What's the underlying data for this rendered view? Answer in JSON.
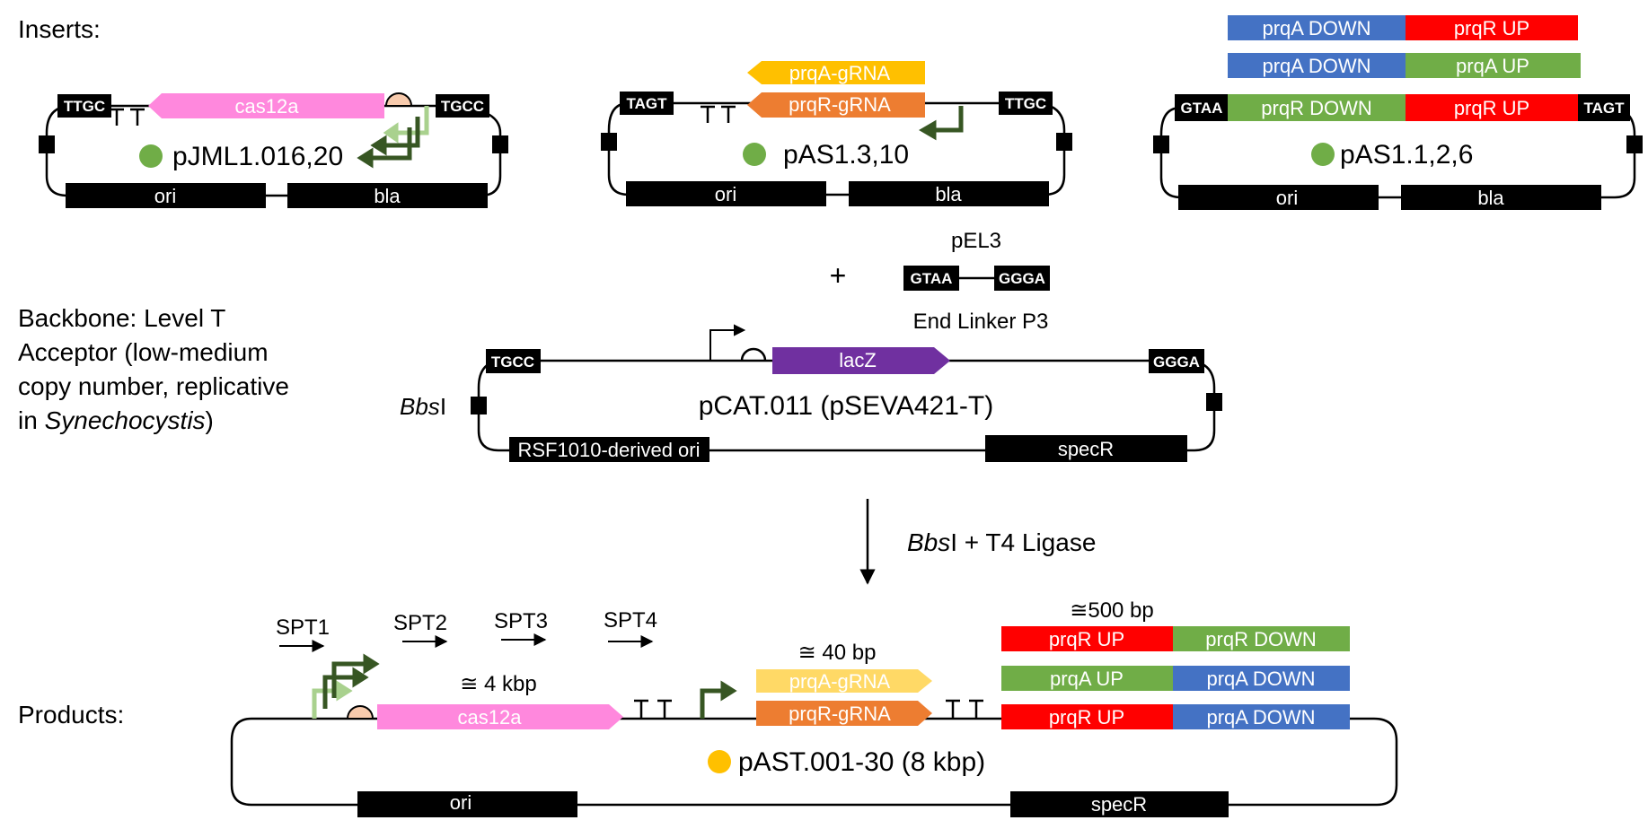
{
  "sections": {
    "inserts": "Inserts:",
    "backbone_lines": [
      "Backbone: Level T",
      "Acceptor (low-medium",
      "copy number, replicative"
    ],
    "backbone_last_prefix": "in ",
    "backbone_last_italic": "Synechocystis",
    "backbone_last_suffix": ")",
    "products": "Products:"
  },
  "plasmid1": {
    "name": "pJML1.016,20",
    "left_overhang": "TTGC",
    "right_overhang": "TGCC",
    "gene": "cas12a",
    "ori": "ori",
    "marker": "bla"
  },
  "plasmid2": {
    "name": "pAS1.3,10",
    "left_overhang": "TAGT",
    "right_overhang": "TTGC",
    "grna_a": "prqA-gRNA",
    "grna_r": "prqR-gRNA",
    "ori": "ori",
    "marker": "bla"
  },
  "plasmid3": {
    "name": "pAS1.1,2,6",
    "left_overhang": "GTAA",
    "right_overhang": "TAGT",
    "rows": [
      [
        "prqA DOWN",
        "prqR UP"
      ],
      [
        "prqA DOWN",
        "prqA UP"
      ],
      [
        "prqR DOWN",
        "prqR UP"
      ]
    ],
    "ori": "ori",
    "marker": "bla"
  },
  "linker": {
    "plus": "+",
    "name": "pEL3",
    "left_overhang": "GTAA",
    "right_overhang": "GGGA",
    "caption": "End Linker P3"
  },
  "backbone": {
    "name": "pCAT.011 (pSEVA421-T)",
    "left_overhang": "TGCC",
    "right_overhang": "GGGA",
    "gene": "lacZ",
    "ori": "RSF1010-derived ori",
    "marker": "specR",
    "site_italic": "Bbs",
    "site_suffix": "I"
  },
  "reaction": {
    "enzyme_italic": "Bbs",
    "rest": "I + T4 Ligase"
  },
  "product": {
    "name": "pAST.001-30 (8 kbp)",
    "primers": [
      "SPT1",
      "SPT2",
      "SPT3",
      "SPT4"
    ],
    "gene": "cas12a",
    "gene_size": "≅ 4 kbp",
    "grna_size": "≅ 40 bp",
    "grna_a": "prqA-gRNA",
    "grna_r": "prqR-gRNA",
    "arm_size": "≅500 bp",
    "rows": [
      [
        "prqR UP",
        "prqR DOWN"
      ],
      [
        "prqA UP",
        "prqA DOWN"
      ],
      [
        "prqR UP",
        "prqA DOWN"
      ]
    ],
    "ori": "ori",
    "marker": "specR"
  },
  "colors": {
    "cas12a": "#ff88dd",
    "prqA_grna": "#ffc000",
    "prqR_grna": "#ed7d31",
    "prqA_grna_light": "#ffd966",
    "lacZ": "#7030a0",
    "blue_arm": "#4472c4",
    "red_arm": "#ff0000",
    "green_arm": "#70ad47",
    "dot_green": "#70ad47",
    "dot_yellow": "#ffc000",
    "promoter_dark": "#375623",
    "promoter_light": "#a9d18e",
    "rbs": "#f8cbad"
  }
}
